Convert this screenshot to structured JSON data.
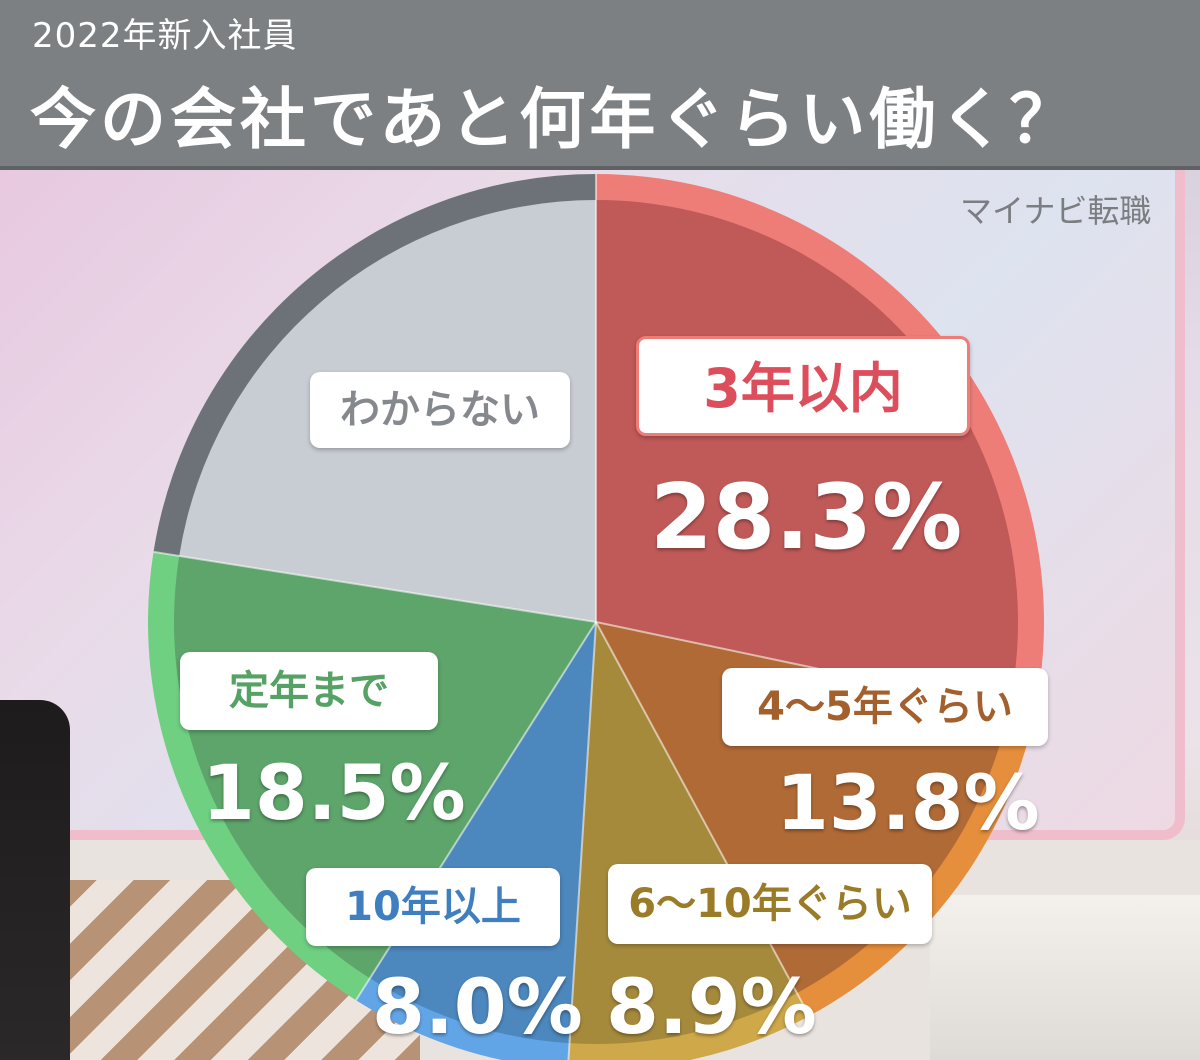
{
  "header": {
    "subtitle": "2022年新入社員",
    "title": "今の会社であと何年ぐらい働く？"
  },
  "source": "マイナビ転職",
  "chart_data": {
    "type": "pie",
    "title": "今の会社であと何年ぐらい働く？",
    "subtitle": "2022年新入社員",
    "start_angle": "12 o'clock, clockwise",
    "slices": [
      {
        "label": "3年以内",
        "value": 28.3,
        "value_text": "28.3%",
        "color": "#c05a58",
        "ring": "#ee7d78",
        "label_color": "#dd4e5c"
      },
      {
        "label": "4～5年ぐらい",
        "value": 13.8,
        "value_text": "13.8%",
        "color": "#b06a36",
        "ring": "#e58e3c",
        "label_color": "#a35f2c"
      },
      {
        "label": "6～10年ぐらい",
        "value": 8.9,
        "value_text": "8.9%",
        "color": "#a68a3c",
        "ring": "#cfa84a",
        "label_color": "#9a7b28"
      },
      {
        "label": "10年以上",
        "value": 8.0,
        "value_text": "8.0%",
        "color": "#4c87bd",
        "ring": "#62a5e6",
        "label_color": "#3f7fc0"
      },
      {
        "label": "定年まで",
        "value": 18.5,
        "value_text": "18.5%",
        "color": "#5da56a",
        "ring": "#6fd082",
        "label_color": "#55a264"
      },
      {
        "label": "わからない",
        "value": 22.5,
        "value_text": "",
        "color": "#c8cdd3",
        "ring": "#6d7278",
        "label_color": "#85898e"
      }
    ]
  }
}
